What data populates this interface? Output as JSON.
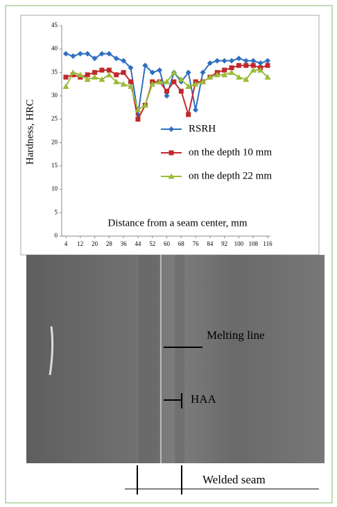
{
  "chart_data": {
    "type": "line",
    "y_label": "Hardness, HRC",
    "x_label": "Distance from a seam center, mm",
    "x": [
      4,
      8,
      12,
      16,
      20,
      24,
      28,
      32,
      36,
      40,
      44,
      48,
      52,
      56,
      60,
      64,
      68,
      72,
      76,
      80,
      84,
      88,
      92,
      96,
      100,
      104,
      108,
      112,
      116
    ],
    "series": [
      {
        "name": "RSRH",
        "color": "#2e6fbf",
        "marker": "diamond",
        "values": [
          39,
          38.5,
          39,
          39,
          38,
          39,
          39,
          38,
          37.5,
          36,
          26,
          36.5,
          35,
          35.5,
          30,
          35,
          33,
          35,
          27,
          35,
          37,
          37.5,
          37.5,
          37.5,
          38,
          37.5,
          37.5,
          37,
          37.5
        ]
      },
      {
        "name": "on the depth 10 mm",
        "color": "#c0292b",
        "marker": "square",
        "values": [
          34,
          34.5,
          34,
          34.5,
          35,
          35.5,
          35.5,
          34.5,
          35,
          33,
          25,
          28,
          33,
          33,
          31,
          33,
          31,
          26,
          33,
          33,
          34,
          35,
          35.5,
          36,
          36.5,
          36.5,
          36.5,
          36,
          36.5
        ]
      },
      {
        "name": "on the depth 22 mm",
        "color": "#9bbb3a",
        "marker": "triangle",
        "values": [
          32,
          35,
          34.5,
          33.5,
          34,
          33.5,
          34.5,
          33,
          32.5,
          32,
          27,
          28,
          32.5,
          33,
          33,
          35,
          33.5,
          32,
          32.5,
          33,
          34,
          34.5,
          34.5,
          35,
          34,
          33.5,
          35.5,
          35.5,
          34
        ]
      }
    ],
    "xlim": [
      4,
      116
    ],
    "xticks": [
      4,
      12,
      20,
      28,
      36,
      44,
      52,
      60,
      68,
      76,
      84,
      92,
      100,
      108,
      116
    ],
    "ylim": [
      0,
      45
    ],
    "yticks": [
      0,
      5,
      10,
      15,
      20,
      25,
      30,
      35,
      40,
      45
    ]
  },
  "photo": {
    "melting_line": "Melting line",
    "haa": "HAA",
    "welded_seam": "Welded seam"
  }
}
